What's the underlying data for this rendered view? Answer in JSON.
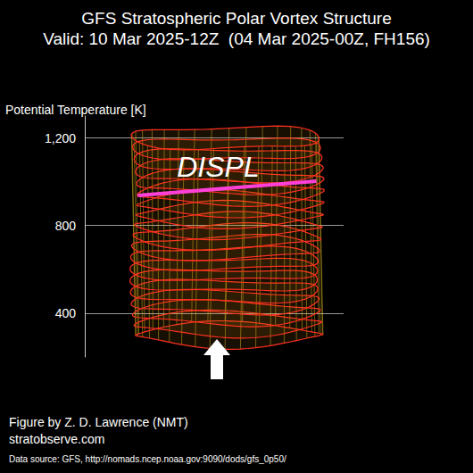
{
  "chart_data": {
    "type": "isosurface",
    "title": "GFS Stratospheric Polar Vortex Structure",
    "subtitle": "Valid: 10 Mar 2025-12Z  (04 Mar 2025-00Z, FH156)",
    "y_label": "Potential Temperature [K]",
    "ylim": [
      200,
      1300
    ],
    "yticks": [
      400,
      800,
      1200
    ],
    "grid": true,
    "color": "#ff3020",
    "levels": [
      300,
      350,
      400,
      450,
      500,
      550,
      600,
      650,
      700,
      750,
      800,
      850,
      900,
      950,
      1000,
      1050,
      1100,
      1150,
      1200
    ],
    "annotation": {
      "text": "DISPL",
      "value": 970,
      "color": "#ff40d8"
    },
    "credits": [
      "Figure by Z. D. Lawrence (NMT)",
      "stratobserve.com",
      "Data source: GFS, http://nomads.ncep.noaa.gov:9090/dods/gfs_0p50/"
    ]
  }
}
